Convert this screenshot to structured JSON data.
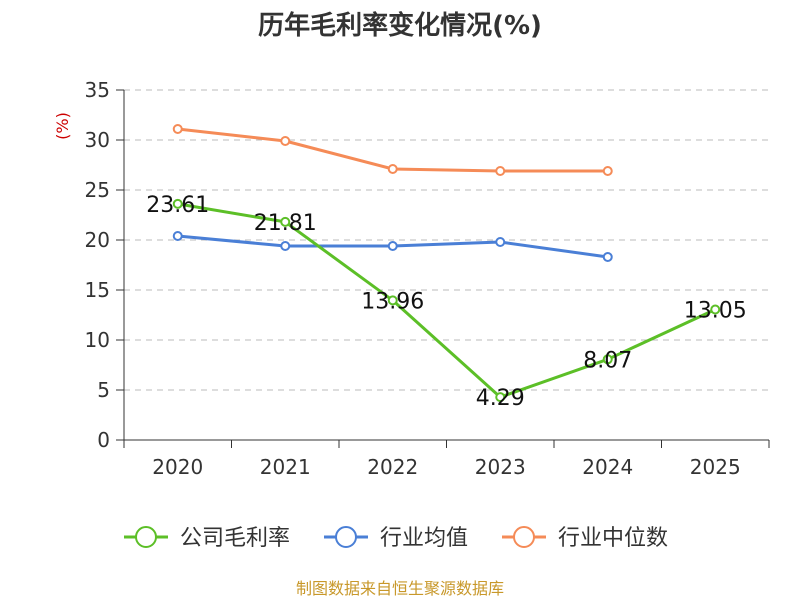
{
  "colors": {
    "company": "#5cbf27",
    "industry_avg": "#4a7fd6",
    "industry_median": "#f58b57",
    "axis": "#333333",
    "grid": "#bbbbbb",
    "unit": "#cc0000",
    "source": "#c8982a"
  },
  "chart_data": {
    "type": "line",
    "title": "历年毛利率变化情况(%)",
    "ylabel": "(%)",
    "xlabel": "",
    "categories": [
      "2020",
      "2021",
      "2022",
      "2023",
      "2024",
      "2025"
    ],
    "ylim": [
      0,
      35
    ],
    "yticks": [
      0,
      5,
      10,
      15,
      20,
      25,
      30,
      35
    ],
    "yticks_text": [
      "0",
      "5",
      "10",
      "15",
      "20",
      "25",
      "30",
      "35"
    ],
    "grid": true,
    "legend_position": "bottom",
    "series": [
      {
        "name": "公司毛利率",
        "color_key": "company",
        "values": [
          23.61,
          21.81,
          13.96,
          4.29,
          8.07,
          13.05
        ],
        "labels": [
          "23.61",
          "21.81",
          "13.96",
          "4.29",
          "8.07",
          "13.05"
        ]
      },
      {
        "name": "行业均值",
        "color_key": "industry_avg",
        "values": [
          20.4,
          19.4,
          19.4,
          19.8,
          18.3,
          null
        ]
      },
      {
        "name": "行业中位数",
        "color_key": "industry_median",
        "values": [
          31.1,
          29.9,
          27.1,
          26.9,
          26.9,
          null
        ]
      }
    ]
  },
  "source_text": "制图数据来自恒生聚源数据库"
}
